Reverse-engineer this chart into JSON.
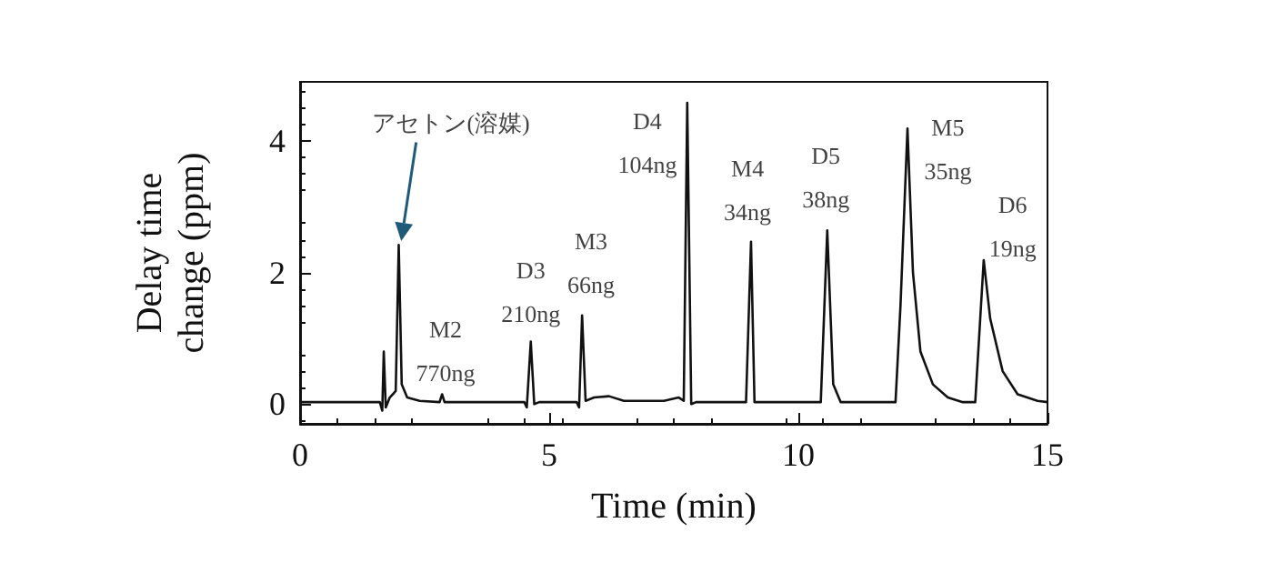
{
  "chart_data": {
    "type": "line",
    "xlabel": "Time (min)",
    "ylabel": "Delay time\nchange (ppm)",
    "xlim": [
      0,
      15
    ],
    "xticks": [
      0,
      5,
      10,
      15
    ],
    "ylim": [
      -0.3,
      4.9
    ],
    "yticks": [
      0,
      2,
      4
    ],
    "grid": false,
    "marker": "none",
    "line_style": "solid",
    "series": [
      {
        "color": "#111111",
        "x": [
          0,
          1.6,
          1.65,
          1.68,
          1.72,
          1.8,
          1.92,
          1.98,
          2.04,
          2.15,
          2.4,
          2.8,
          2.85,
          2.9,
          4.5,
          4.55,
          4.63,
          4.7,
          4.8,
          5.55,
          5.6,
          5.66,
          5.73,
          5.9,
          6.2,
          6.5,
          7.3,
          7.6,
          7.7,
          7.77,
          7.85,
          7.95,
          8.95,
          9.05,
          9.12,
          10.45,
          10.58,
          10.7,
          10.85,
          11.95,
          12.05,
          12.19,
          12.3,
          12.45,
          12.7,
          13.0,
          13.3,
          13.55,
          13.72,
          13.85,
          14.1,
          14.4,
          14.8,
          15
        ],
        "values": [
          0.03,
          0.03,
          -0.1,
          0.8,
          -0.05,
          0.1,
          0.2,
          2.42,
          0.3,
          0.1,
          0.05,
          0.03,
          0.15,
          0.03,
          0.03,
          -0.05,
          0.95,
          0.0,
          0.03,
          0.03,
          -0.05,
          1.35,
          0.05,
          0.1,
          0.12,
          0.05,
          0.05,
          0.1,
          0.05,
          4.58,
          0.0,
          0.03,
          0.03,
          2.47,
          0.03,
          0.03,
          2.64,
          0.3,
          0.03,
          0.03,
          1.5,
          4.19,
          2.0,
          0.8,
          0.3,
          0.1,
          0.03,
          0.03,
          2.19,
          1.3,
          0.5,
          0.15,
          0.05,
          0.03
        ]
      }
    ],
    "annotations": [
      "アセトン(溶媒)",
      "M2\n770ng",
      "D3\n210ng",
      "M3\n66ng",
      "D4\n104ng",
      "M4\n34ng",
      "D5\n38ng",
      "M5\n35ng",
      "D6\n19ng"
    ]
  }
}
